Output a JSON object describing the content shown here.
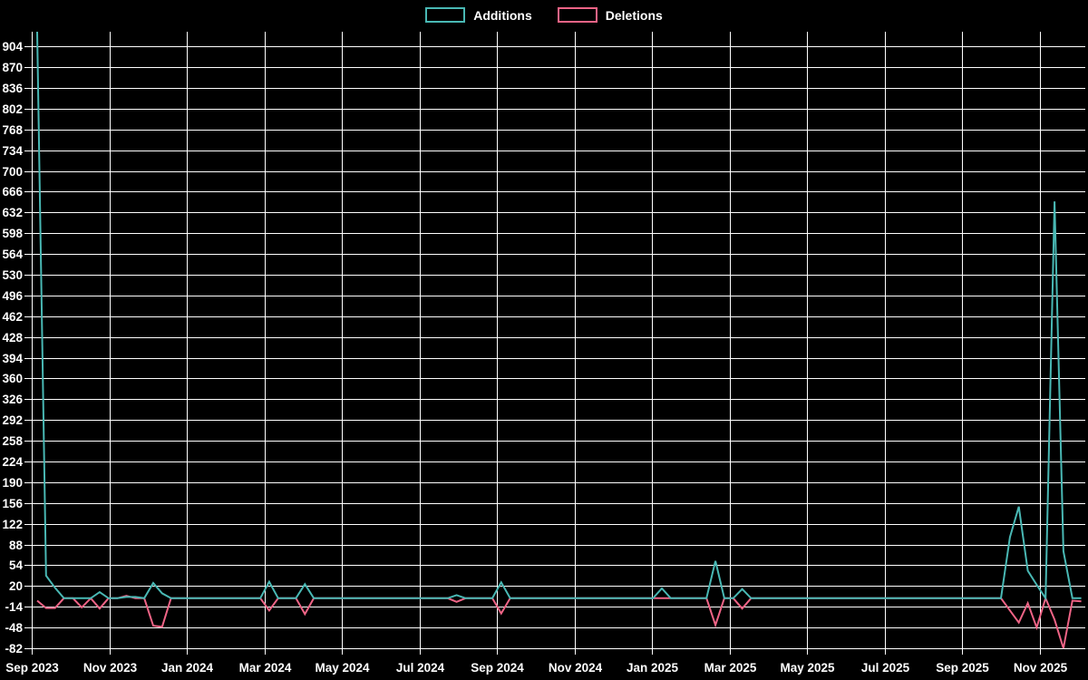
{
  "chart_data": {
    "type": "line",
    "title": "",
    "legend_position": "top-center",
    "grid": true,
    "background_color": "#000000",
    "gridline_color": "#ffffff",
    "text_color": "#ffffff",
    "series": [
      {
        "name": "Additions",
        "color": "#49b8b4"
      },
      {
        "name": "Deletions",
        "color": "#ef6486"
      }
    ],
    "x_axis": {
      "tick_labels": [
        "Sep 2023",
        "Nov 2023",
        "Jan 2024",
        "Mar 2024",
        "May 2024",
        "Jul 2024",
        "Sep 2024",
        "Nov 2024",
        "Jan 2025",
        "Mar 2025",
        "May 2025",
        "Jul 2025",
        "Sep 2025",
        "Nov 2025"
      ],
      "unit": "week",
      "weeks_total": 118
    },
    "y_axis": {
      "min": -82,
      "max": 904,
      "step": 34,
      "plot_max_value": 928,
      "tick_labels": [
        -82,
        -48,
        -14,
        20,
        54,
        88,
        122,
        156,
        190,
        224,
        258,
        292,
        326,
        360,
        394,
        428,
        462,
        496,
        530,
        564,
        598,
        632,
        666,
        700,
        734,
        768,
        802,
        836,
        870,
        904
      ]
    },
    "baseline_value": 0,
    "points_note": "weeks 0-117 starting Sep 2023; weeks not listed have additions 0 and deletions 0",
    "points": [
      {
        "week": 0,
        "additions": 928,
        "deletions": -4
      },
      {
        "week": 1,
        "additions": 37,
        "deletions": -16
      },
      {
        "week": 2,
        "additions": 17,
        "deletions": -16
      },
      {
        "week": 5,
        "additions": 0,
        "deletions": -15
      },
      {
        "week": 7,
        "additions": 10,
        "deletions": -17
      },
      {
        "week": 10,
        "additions": 2,
        "deletions": 4
      },
      {
        "week": 11,
        "additions": 2,
        "deletions": 0
      },
      {
        "week": 13,
        "additions": 25,
        "deletions": -45
      },
      {
        "week": 14,
        "additions": 8,
        "deletions": -47
      },
      {
        "week": 26,
        "additions": 27,
        "deletions": -20
      },
      {
        "week": 30,
        "additions": 23,
        "deletions": -26
      },
      {
        "week": 47,
        "additions": 5,
        "deletions": -6
      },
      {
        "week": 52,
        "additions": 26,
        "deletions": -25
      },
      {
        "week": 70,
        "additions": 16,
        "deletions": 0
      },
      {
        "week": 76,
        "additions": 61,
        "deletions": -44
      },
      {
        "week": 79,
        "additions": 15,
        "deletions": -17
      },
      {
        "week": 109,
        "additions": 100,
        "deletions": -20
      },
      {
        "week": 110,
        "additions": 150,
        "deletions": -40
      },
      {
        "week": 111,
        "additions": 45,
        "deletions": -8
      },
      {
        "week": 112,
        "additions": 22,
        "deletions": -48
      },
      {
        "week": 114,
        "additions": 650,
        "deletions": -35
      },
      {
        "week": 115,
        "additions": 77,
        "deletions": -82
      },
      {
        "week": 116,
        "additions": 0,
        "deletions": -4
      },
      {
        "week": 117,
        "additions": 0,
        "deletions": -5
      }
    ]
  }
}
